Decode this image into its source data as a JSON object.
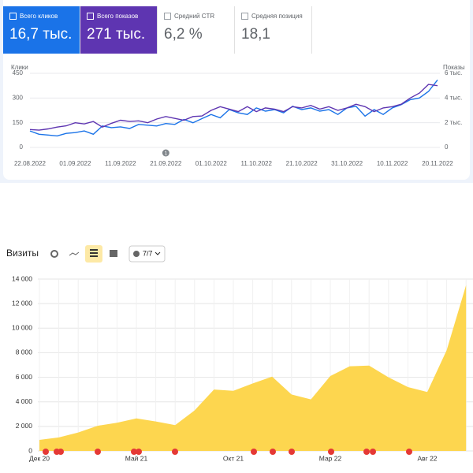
{
  "chart_data": [
    {
      "type": "line",
      "metrics": [
        {
          "label": "Всего кликов",
          "value": "16,7 тыс.",
          "selected": true,
          "color": "#1a73e8"
        },
        {
          "label": "Всего показов",
          "value": "271 тыс.",
          "selected": true,
          "color": "#5e35b1"
        },
        {
          "label": "Средний CTR",
          "value": "6,2 %",
          "selected": false,
          "color": "#ffffff"
        },
        {
          "label": "Средняя позиция",
          "value": "18,1",
          "selected": false,
          "color": "#ffffff"
        }
      ],
      "categories": [
        "22.08.2022",
        null,
        null,
        null,
        null,
        "01.09.2022",
        null,
        null,
        null,
        null,
        "11.09.2022",
        null,
        null,
        null,
        null,
        "21.09.2022",
        null,
        null,
        null,
        null,
        "01.10.2022",
        null,
        null,
        null,
        null,
        "11.10.2022",
        null,
        null,
        null,
        null,
        "21.10.2022",
        null,
        null,
        null,
        null,
        "31.10.2022",
        null,
        null,
        null,
        null,
        "10.11.2022",
        null,
        null,
        null,
        null,
        "20.11.2022"
      ],
      "series": [
        {
          "name": "Клики",
          "color": "#1a73e8",
          "values": [
            100,
            80,
            75,
            70,
            85,
            90,
            100,
            80,
            130,
            120,
            125,
            115,
            140,
            135,
            130,
            145,
            140,
            170,
            150,
            175,
            200,
            180,
            230,
            210,
            200,
            240,
            220,
            230,
            210,
            250,
            230,
            240,
            220,
            230,
            200,
            240,
            250,
            190,
            230,
            200,
            240,
            260,
            290,
            300,
            340,
            410
          ]
        },
        {
          "name": "Показы",
          "color": "#5e35b1",
          "axis": "y2",
          "values": [
            1450,
            1400,
            1500,
            1650,
            1750,
            2000,
            1900,
            2100,
            1650,
            1950,
            2200,
            2100,
            2150,
            2000,
            2300,
            2500,
            2350,
            2200,
            2500,
            2550,
            3000,
            3300,
            3100,
            2900,
            3300,
            2900,
            3200,
            3100,
            2900,
            3300,
            3200,
            3400,
            3100,
            3300,
            3000,
            3200,
            3500,
            3300,
            2900,
            3200,
            3300,
            3500,
            4000,
            4400,
            5100,
            5000
          ]
        }
      ],
      "ylim": [
        0,
        450
      ],
      "yticks": [
        0,
        150,
        300,
        450
      ],
      "y2lim": [
        0,
        6000
      ],
      "y2ticks": [
        0,
        {
          "value": 2000,
          "label": "2 тыс."
        },
        {
          "value": 4000,
          "label": "4 тыс."
        },
        {
          "value": 6000,
          "label": "6 тыс."
        }
      ],
      "grid": true,
      "annotations": [
        {
          "at": 15,
          "text": "1"
        }
      ]
    },
    {
      "type": "area",
      "title": "Визиты",
      "control": "7/7",
      "color": "#fdd64f",
      "categories": [
        "Дек 20",
        null,
        null,
        null,
        null,
        "Май 21",
        null,
        null,
        null,
        null,
        "Окт 21",
        null,
        null,
        null,
        null,
        "Мар 22",
        null,
        null,
        null,
        null,
        "Авг 22",
        null,
        null
      ],
      "values": [
        900,
        1100,
        1500,
        2050,
        2300,
        2650,
        2400,
        2100,
        3300,
        5000,
        4900,
        5500,
        6050,
        4600,
        4200,
        6100,
        6900,
        6950,
        6000,
        5200,
        4800,
        8200,
        13500
      ],
      "ylim": [
        0,
        14000
      ],
      "yticks": [
        0,
        {
          "value": 2000,
          "label": "2 000"
        },
        {
          "value": 4000,
          "label": "4 000"
        },
        {
          "value": 6000,
          "label": "6 000"
        },
        {
          "value": 8000,
          "label": "8 000"
        },
        {
          "value": 10000,
          "label": "10 000"
        },
        {
          "value": 12000,
          "label": "12 000"
        },
        {
          "value": 14000,
          "label": "14 000"
        }
      ],
      "grid": true
    }
  ]
}
